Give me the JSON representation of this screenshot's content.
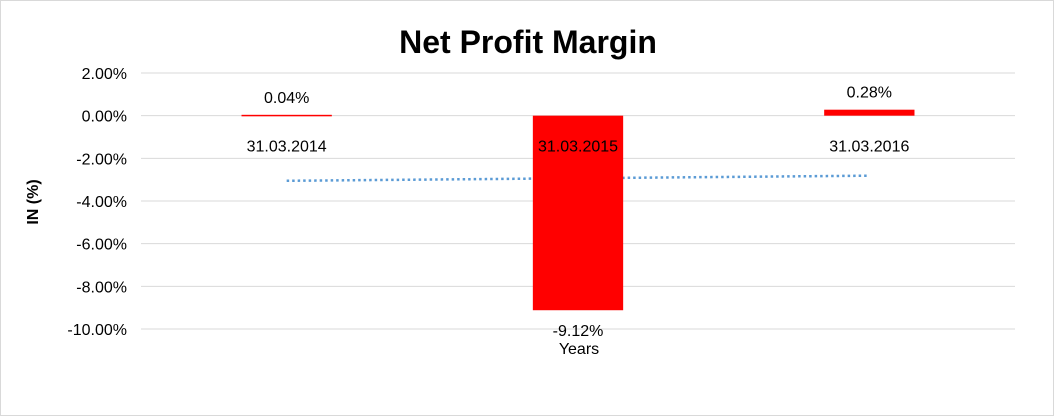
{
  "chart_data": {
    "type": "bar",
    "title": "Net Profit Margin",
    "xlabel": "Years",
    "ylabel": "IN (%)",
    "categories": [
      "31.03.2014",
      "31.03.2015",
      "31.03.2016"
    ],
    "series": [
      {
        "values": [
          0.04,
          -9.12,
          0.28
        ],
        "labels": [
          "0.04%",
          "-9.12%",
          "0.28%"
        ]
      }
    ],
    "trendline": {
      "type": "linear",
      "style": "dotted"
    },
    "ylim": [
      -10,
      2
    ],
    "yticks": [
      2,
      0,
      -2,
      -4,
      -6,
      -8,
      -10
    ],
    "ytick_labels": [
      "2.00%",
      "0.00%",
      "-2.00%",
      "-4.00%",
      "-6.00%",
      "-8.00%",
      "-10.00%"
    ],
    "grid": true,
    "legend": "none",
    "colors": {
      "bar": "#ff0000",
      "trendline": "#5b9bd5",
      "grid": "#d9d9d9"
    }
  }
}
